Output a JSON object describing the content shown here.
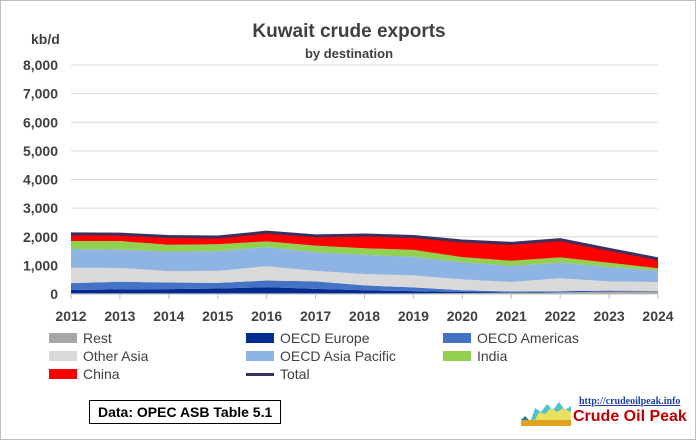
{
  "chart_data": {
    "type": "area",
    "title": "Kuwait crude exports",
    "subtitle": "by destination",
    "ylabel": "kb/d",
    "xlabel": "",
    "ylim": [
      0,
      8000
    ],
    "yticks": [
      "0",
      "1,000",
      "2,000",
      "3,000",
      "4,000",
      "5,000",
      "6,000",
      "7,000",
      "8,000"
    ],
    "x": [
      "2012",
      "2013",
      "2014",
      "2015",
      "2016",
      "2017",
      "2018",
      "2019",
      "2020",
      "2021",
      "2022",
      "2023",
      "2024"
    ],
    "grid": true,
    "legend_position": "bottom",
    "series": [
      {
        "name": "Rest",
        "color": "#a6a6a6",
        "values": [
          20,
          20,
          20,
          20,
          20,
          20,
          20,
          20,
          30,
          40,
          60,
          80,
          90
        ]
      },
      {
        "name": "OECD Europe",
        "color": "#002b8f",
        "values": [
          120,
          140,
          150,
          170,
          220,
          160,
          110,
          80,
          40,
          20,
          20,
          20,
          10
        ]
      },
      {
        "name": "OECD Americas",
        "color": "#4472c4",
        "values": [
          240,
          270,
          230,
          200,
          230,
          260,
          170,
          130,
          60,
          30,
          20,
          20,
          10
        ]
      },
      {
        "name": "Other Asia",
        "color": "#d9d9d9",
        "values": [
          540,
          480,
          400,
          420,
          500,
          370,
          400,
          420,
          380,
          330,
          450,
          320,
          310
        ]
      },
      {
        "name": "OECD Asia Pacific",
        "color": "#8eb4e3",
        "values": [
          650,
          640,
          680,
          690,
          670,
          650,
          670,
          650,
          600,
          560,
          550,
          500,
          400
        ]
      },
      {
        "name": "India",
        "color": "#92d050",
        "values": [
          280,
          300,
          240,
          240,
          200,
          230,
          230,
          240,
          180,
          180,
          180,
          150,
          80
        ]
      },
      {
        "name": "China",
        "color": "#ff0000",
        "values": [
          250,
          240,
          290,
          250,
          320,
          340,
          460,
          470,
          560,
          610,
          620,
          470,
          330
        ]
      }
    ],
    "total": {
      "name": "Total",
      "color": "#3b3160",
      "values": [
        2100,
        2090,
        2010,
        1990,
        2160,
        2030,
        2060,
        2010,
        1850,
        1770,
        1900,
        1560,
        1230
      ]
    },
    "source_note": "Data: OPEC ASB Table 5.1"
  },
  "logo": {
    "url": "http://crudeoilpeak.info",
    "name": "Crude Oil Peak"
  }
}
